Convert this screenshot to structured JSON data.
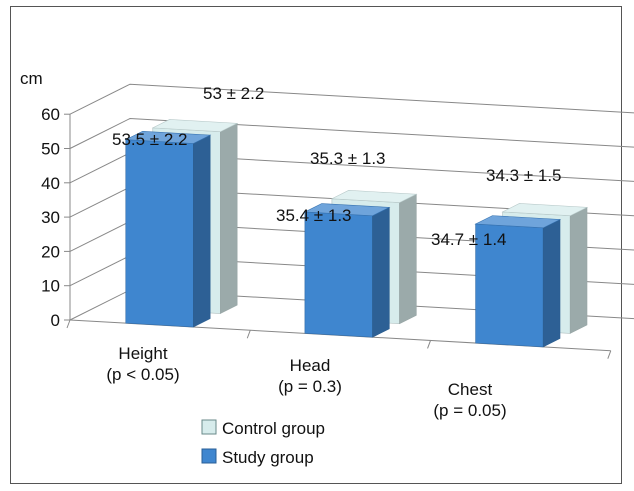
{
  "chart_data": {
    "type": "bar",
    "subtype": "3d-clustered-column",
    "ylabel": "cm",
    "ylim": [
      0,
      60
    ],
    "yticks": [
      0,
      10,
      20,
      30,
      40,
      50,
      60
    ],
    "grid": true,
    "legend_position": "bottom-left",
    "categories": [
      {
        "name": "Height",
        "note": "(p < 0.05)"
      },
      {
        "name": "Head",
        "note": "(p = 0.3)"
      },
      {
        "name": "Chest",
        "note": "(p = 0.05)"
      }
    ],
    "series": [
      {
        "name": "Control group",
        "color": "#d7ecec",
        "values": [
          53,
          35.3,
          34.3
        ],
        "labels": [
          "53 ± 2.2",
          "35.3 ± 1.3",
          "34.3 ± 1.5"
        ]
      },
      {
        "name": "Study group",
        "color": "#3f86cf",
        "values": [
          53.5,
          35.4,
          34.7
        ],
        "labels": [
          "53.5 ± 2.2",
          "35.4 ± 1.3",
          "34.7 ± 1.4"
        ]
      }
    ]
  }
}
